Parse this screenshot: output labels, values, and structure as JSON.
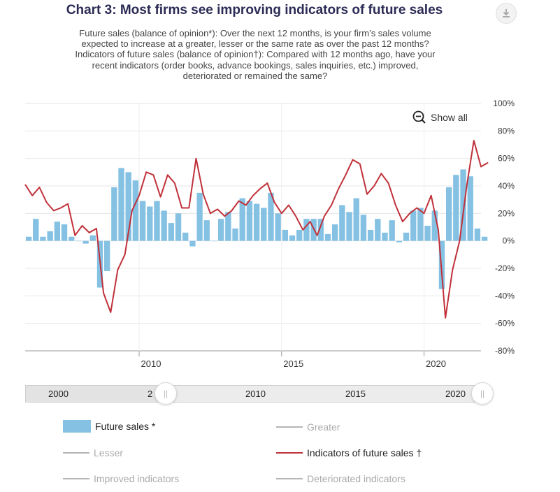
{
  "title": "Chart 3: Most firms see improving indicators of future sales",
  "subtitle_lines": [
    "Future sales (balance of opinion*): Over the next 12 months, is your firm’s sales volume",
    "expected to increase at a greater, lesser or the same rate as over the past 12 months?",
    "Indicators of future sales (balance of opinion†): Compared with 12 months ago, have your",
    "recent indicators (order books, advance bookings, sales inquiries, etc.) improved,",
    "deteriorated or remained the same?"
  ],
  "show_all_label": "Show all",
  "navigator": {
    "labels": [
      "2000",
      "2",
      "2010",
      "2015",
      "2020"
    ],
    "handle_glyph": "||"
  },
  "legend": [
    {
      "label": "Future sales *",
      "state": "on",
      "kind": "bar",
      "color": "#85c1e3"
    },
    {
      "label": "Greater",
      "state": "off",
      "kind": "line",
      "color": "#b5b5b5"
    },
    {
      "label": "Lesser",
      "state": "off",
      "kind": "line",
      "color": "#b5b5b5"
    },
    {
      "label": "Indicators of future sales †",
      "state": "on",
      "kind": "line",
      "color": "#c0313a"
    },
    {
      "label": "Improved indicators",
      "state": "off",
      "kind": "line",
      "color": "#b5b5b5"
    },
    {
      "label": "Deteriorated indicators",
      "state": "off",
      "kind": "line",
      "color": "#b5b5b5"
    }
  ],
  "chart_data": {
    "type": "bar",
    "title": "Chart 3: Most firms see improving indicators of future sales",
    "xlabel": "",
    "ylabel": "",
    "ylim": [
      -80,
      100
    ],
    "yticks": [
      100,
      80,
      60,
      40,
      20,
      0,
      -20,
      -40,
      -60,
      -80
    ],
    "ytick_labels": [
      "100%",
      "80%",
      "60%",
      "40%",
      "20%",
      "0%",
      "-20%",
      "-40%",
      "-60%",
      "-80%"
    ],
    "xlim": [
      2006.0,
      2022.0
    ],
    "xticks": [
      2010,
      2015,
      2020
    ],
    "xtick_labels": [
      "2010",
      "2015",
      "2020"
    ],
    "grid": true,
    "legend_position": "bottom",
    "series": [
      {
        "name": "Future sales *",
        "type": "bar",
        "color": "#85c1e3",
        "x_start": 2006.0,
        "x_step": 0.25,
        "values": [
          3,
          16,
          3,
          7,
          14,
          12,
          3,
          0,
          -2,
          4,
          -34,
          -22,
          39,
          53,
          50,
          44,
          29,
          25,
          29,
          22,
          13,
          20,
          6,
          -4,
          35,
          15,
          0,
          16,
          21,
          9,
          31,
          29,
          27,
          24,
          35,
          20,
          8,
          4,
          8,
          16,
          16,
          16,
          5,
          12,
          26,
          21,
          31,
          19,
          8,
          16,
          6,
          15,
          -1,
          6,
          22,
          24,
          11,
          22,
          -35,
          39,
          48,
          52,
          47,
          9,
          3
        ]
      },
      {
        "name": "Indicators of future sales †",
        "type": "line",
        "color": "#c0313a",
        "x_start": 2006.0,
        "x_step": 0.25,
        "values": [
          41,
          33,
          39,
          28,
          22,
          24,
          27,
          4,
          11,
          6,
          9,
          -38,
          -52,
          -21,
          -10,
          22,
          33,
          50,
          48,
          32,
          48,
          42,
          24,
          24,
          60,
          34,
          20,
          23,
          18,
          22,
          29,
          26,
          33,
          38,
          42,
          28,
          20,
          26,
          18,
          8,
          14,
          4,
          18,
          26,
          38,
          48,
          59,
          56,
          34,
          40,
          49,
          42,
          26,
          14,
          20,
          24,
          20,
          33,
          8,
          -56,
          -21,
          0,
          40,
          73,
          54,
          57
        ]
      }
    ]
  }
}
